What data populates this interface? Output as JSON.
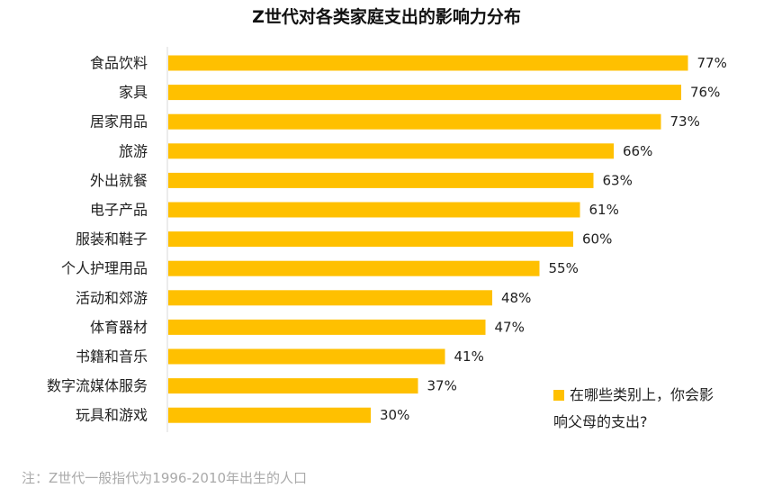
{
  "title": "Z世代对各类家庭支出的影响力分布",
  "footnote": "注：Z世代一般指代为1996-2010年出生的人口",
  "colors": {
    "bar": "#FFC000",
    "axis": "#d9d9d9",
    "text": "#222222",
    "footnote": "#aaaaaa"
  },
  "chart_data": {
    "type": "bar",
    "orientation": "horizontal",
    "title": "Z世代对各类家庭支出的影响力分布",
    "categories": [
      "食品饮料",
      "家具",
      "居家用品",
      "旅游",
      "外出就餐",
      "电子产品",
      "服装和鞋子",
      "个人护理用品",
      "活动和郊游",
      "体育器材",
      "书籍和音乐",
      "数字流媒体服务",
      "玩具和游戏"
    ],
    "series": [
      {
        "name": "在哪些类别上，你会影响父母的支出?",
        "values": [
          77,
          76,
          73,
          66,
          63,
          61,
          60,
          55,
          48,
          47,
          41,
          37,
          30
        ]
      }
    ],
    "value_labels": [
      "77%",
      "76%",
      "73%",
      "66%",
      "63%",
      "61%",
      "60%",
      "55%",
      "48%",
      "47%",
      "41%",
      "37%",
      "30%"
    ],
    "unit": "%",
    "xlim": [
      0,
      100
    ],
    "grid": false,
    "legend_position": "bottom-right"
  },
  "legend": {
    "line1": "在哪些类别上，你会影",
    "line2": "响父母的支出?"
  }
}
